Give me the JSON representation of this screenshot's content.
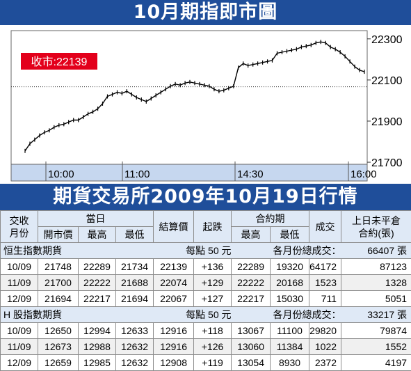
{
  "title": "10月期指即市圖",
  "subtitle": "期貨交易所2009年10月19日行情",
  "chart_data": {
    "type": "line",
    "label": "收市:22139",
    "x_ticks": [
      "10:00",
      "11:00",
      "14:30",
      "16:00"
    ],
    "y_ticks": [
      21700,
      21900,
      22100,
      22300
    ],
    "ylim": [
      21690,
      22340
    ],
    "reference_line": 22067,
    "grid": false,
    "series": [
      {
        "values": [
          21755,
          21790,
          21810,
          21830,
          21845,
          21855,
          21870,
          21880,
          21885,
          21895,
          21905,
          21905,
          21920,
          21935,
          21945,
          21960,
          21985,
          22020,
          22030,
          22040,
          22035,
          22045,
          22030,
          22015,
          22005,
          21995,
          22010,
          22025,
          22040,
          22055,
          22070,
          22080,
          22075,
          22085,
          22090,
          22085,
          22080,
          22075,
          22070,
          22055,
          22045,
          22050,
          22060,
          22070,
          22160,
          22180,
          22170,
          22175,
          22180,
          22185,
          22190,
          22195,
          22230,
          22235,
          22240,
          22245,
          22250,
          22260,
          22265,
          22270,
          22280,
          22285,
          22280,
          22260,
          22250,
          22235,
          22215,
          22190,
          22165,
          22148,
          22140
        ]
      }
    ]
  },
  "table": {
    "header1": {
      "c1": "交收",
      "c2": "當日",
      "c3": "結算價",
      "c4": "起跌",
      "c5": "合約期",
      "c6": "成交",
      "c7": "上日未平倉"
    },
    "header2": {
      "c1": "月份",
      "c2": "開市價",
      "c3": "最高",
      "c4": "最低",
      "c5": "最高",
      "c6": "最低",
      "c7": "合約(張)"
    },
    "sections": [
      {
        "name": "恒生指數期貨",
        "unit": "每點 50 元",
        "total_label": "各月份總成交：",
        "total": "66407 張",
        "rows": [
          {
            "month": "10/09",
            "open": "21748",
            "high": "22289",
            "low": "21734",
            "settle": "22139",
            "change": "+136",
            "c_high": "22289",
            "c_low": "19320",
            "volume": "64172",
            "oi": "87123"
          },
          {
            "month": "11/09",
            "open": "21700",
            "high": "22222",
            "low": "21688",
            "settle": "22074",
            "change": "+129",
            "c_high": "22222",
            "c_low": "20168",
            "volume": "1523",
            "oi": "1328"
          },
          {
            "month": "12/09",
            "open": "21694",
            "high": "22217",
            "low": "21694",
            "settle": "22067",
            "change": "+127",
            "c_high": "22217",
            "c_low": "15030",
            "volume": "711",
            "oi": "5051"
          }
        ]
      },
      {
        "name": "H 股指數期貨",
        "unit": "每點 50 元",
        "total_label": "各月份總成交：",
        "total": "33217 張",
        "rows": [
          {
            "month": "10/09",
            "open": "12650",
            "high": "12994",
            "low": "12633",
            "settle": "12916",
            "change": "+118",
            "c_high": "13067",
            "c_low": "11100",
            "volume": "29820",
            "oi": "79874"
          },
          {
            "month": "11/09",
            "open": "12673",
            "high": "12988",
            "low": "12632",
            "settle": "12916",
            "change": "+126",
            "c_high": "13060",
            "c_low": "11384",
            "volume": "1022",
            "oi": "1552"
          },
          {
            "month": "12/09",
            "open": "12659",
            "high": "12985",
            "low": "12632",
            "settle": "12908",
            "change": "+119",
            "c_high": "13054",
            "c_low": "8930",
            "volume": "2372",
            "oi": "4197"
          }
        ]
      }
    ]
  }
}
